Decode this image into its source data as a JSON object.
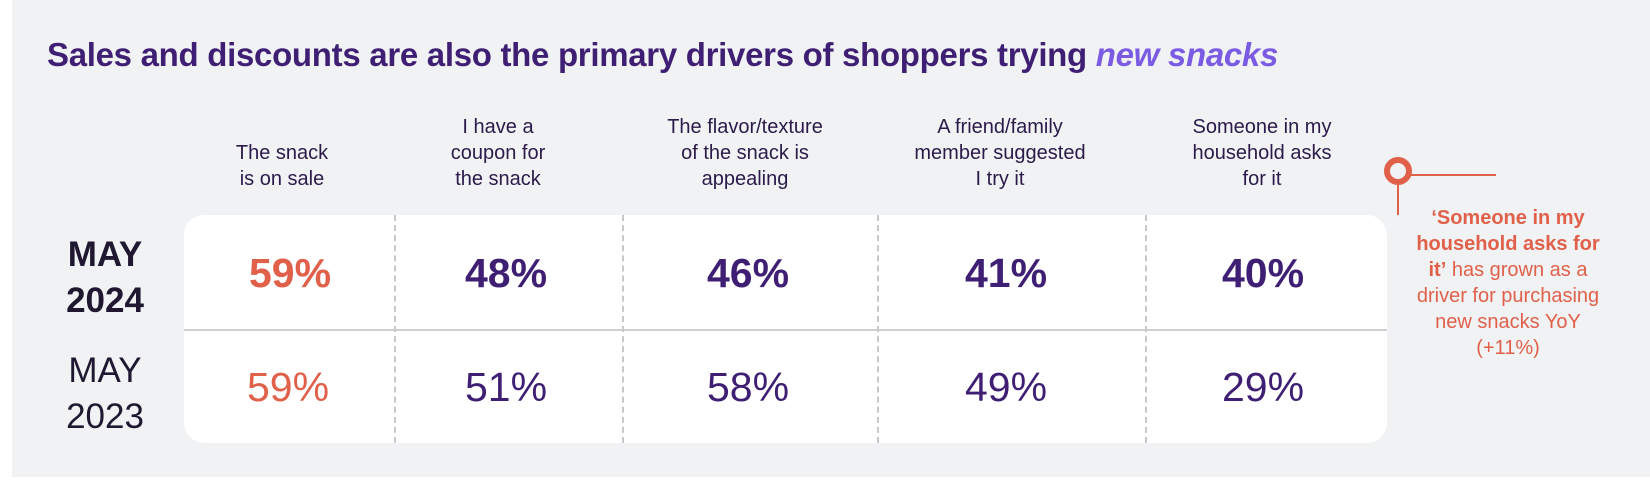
{
  "chart_data": {
    "type": "table",
    "title_main": "Sales and discounts are also the primary drivers of shoppers trying ",
    "title_emphasis": "new snacks",
    "categories": [
      "The snack\nis on sale",
      "I have a\ncoupon for\nthe snack",
      "The flavor/texture\nof the snack is\nappealing",
      "A friend/family\nmember suggested\nI try it",
      "Someone in my\nhousehold asks\nfor it"
    ],
    "series": [
      {
        "name": "MAY\n2024",
        "values": [
          "59%",
          "48%",
          "46%",
          "41%",
          "40%"
        ]
      },
      {
        "name": "MAY\n2023",
        "values": [
          "59%",
          "51%",
          "58%",
          "49%",
          "29%"
        ]
      }
    ],
    "annotation": {
      "bold": "‘Someone in my household asks for it’",
      "text": " has grown as a driver for purchasing new snacks YoY (+11%)"
    }
  },
  "colors": {
    "title": "#3f1f73",
    "emphasis": "#7b5be4",
    "highlight": "#e0604a",
    "value": "#3f1f73"
  }
}
